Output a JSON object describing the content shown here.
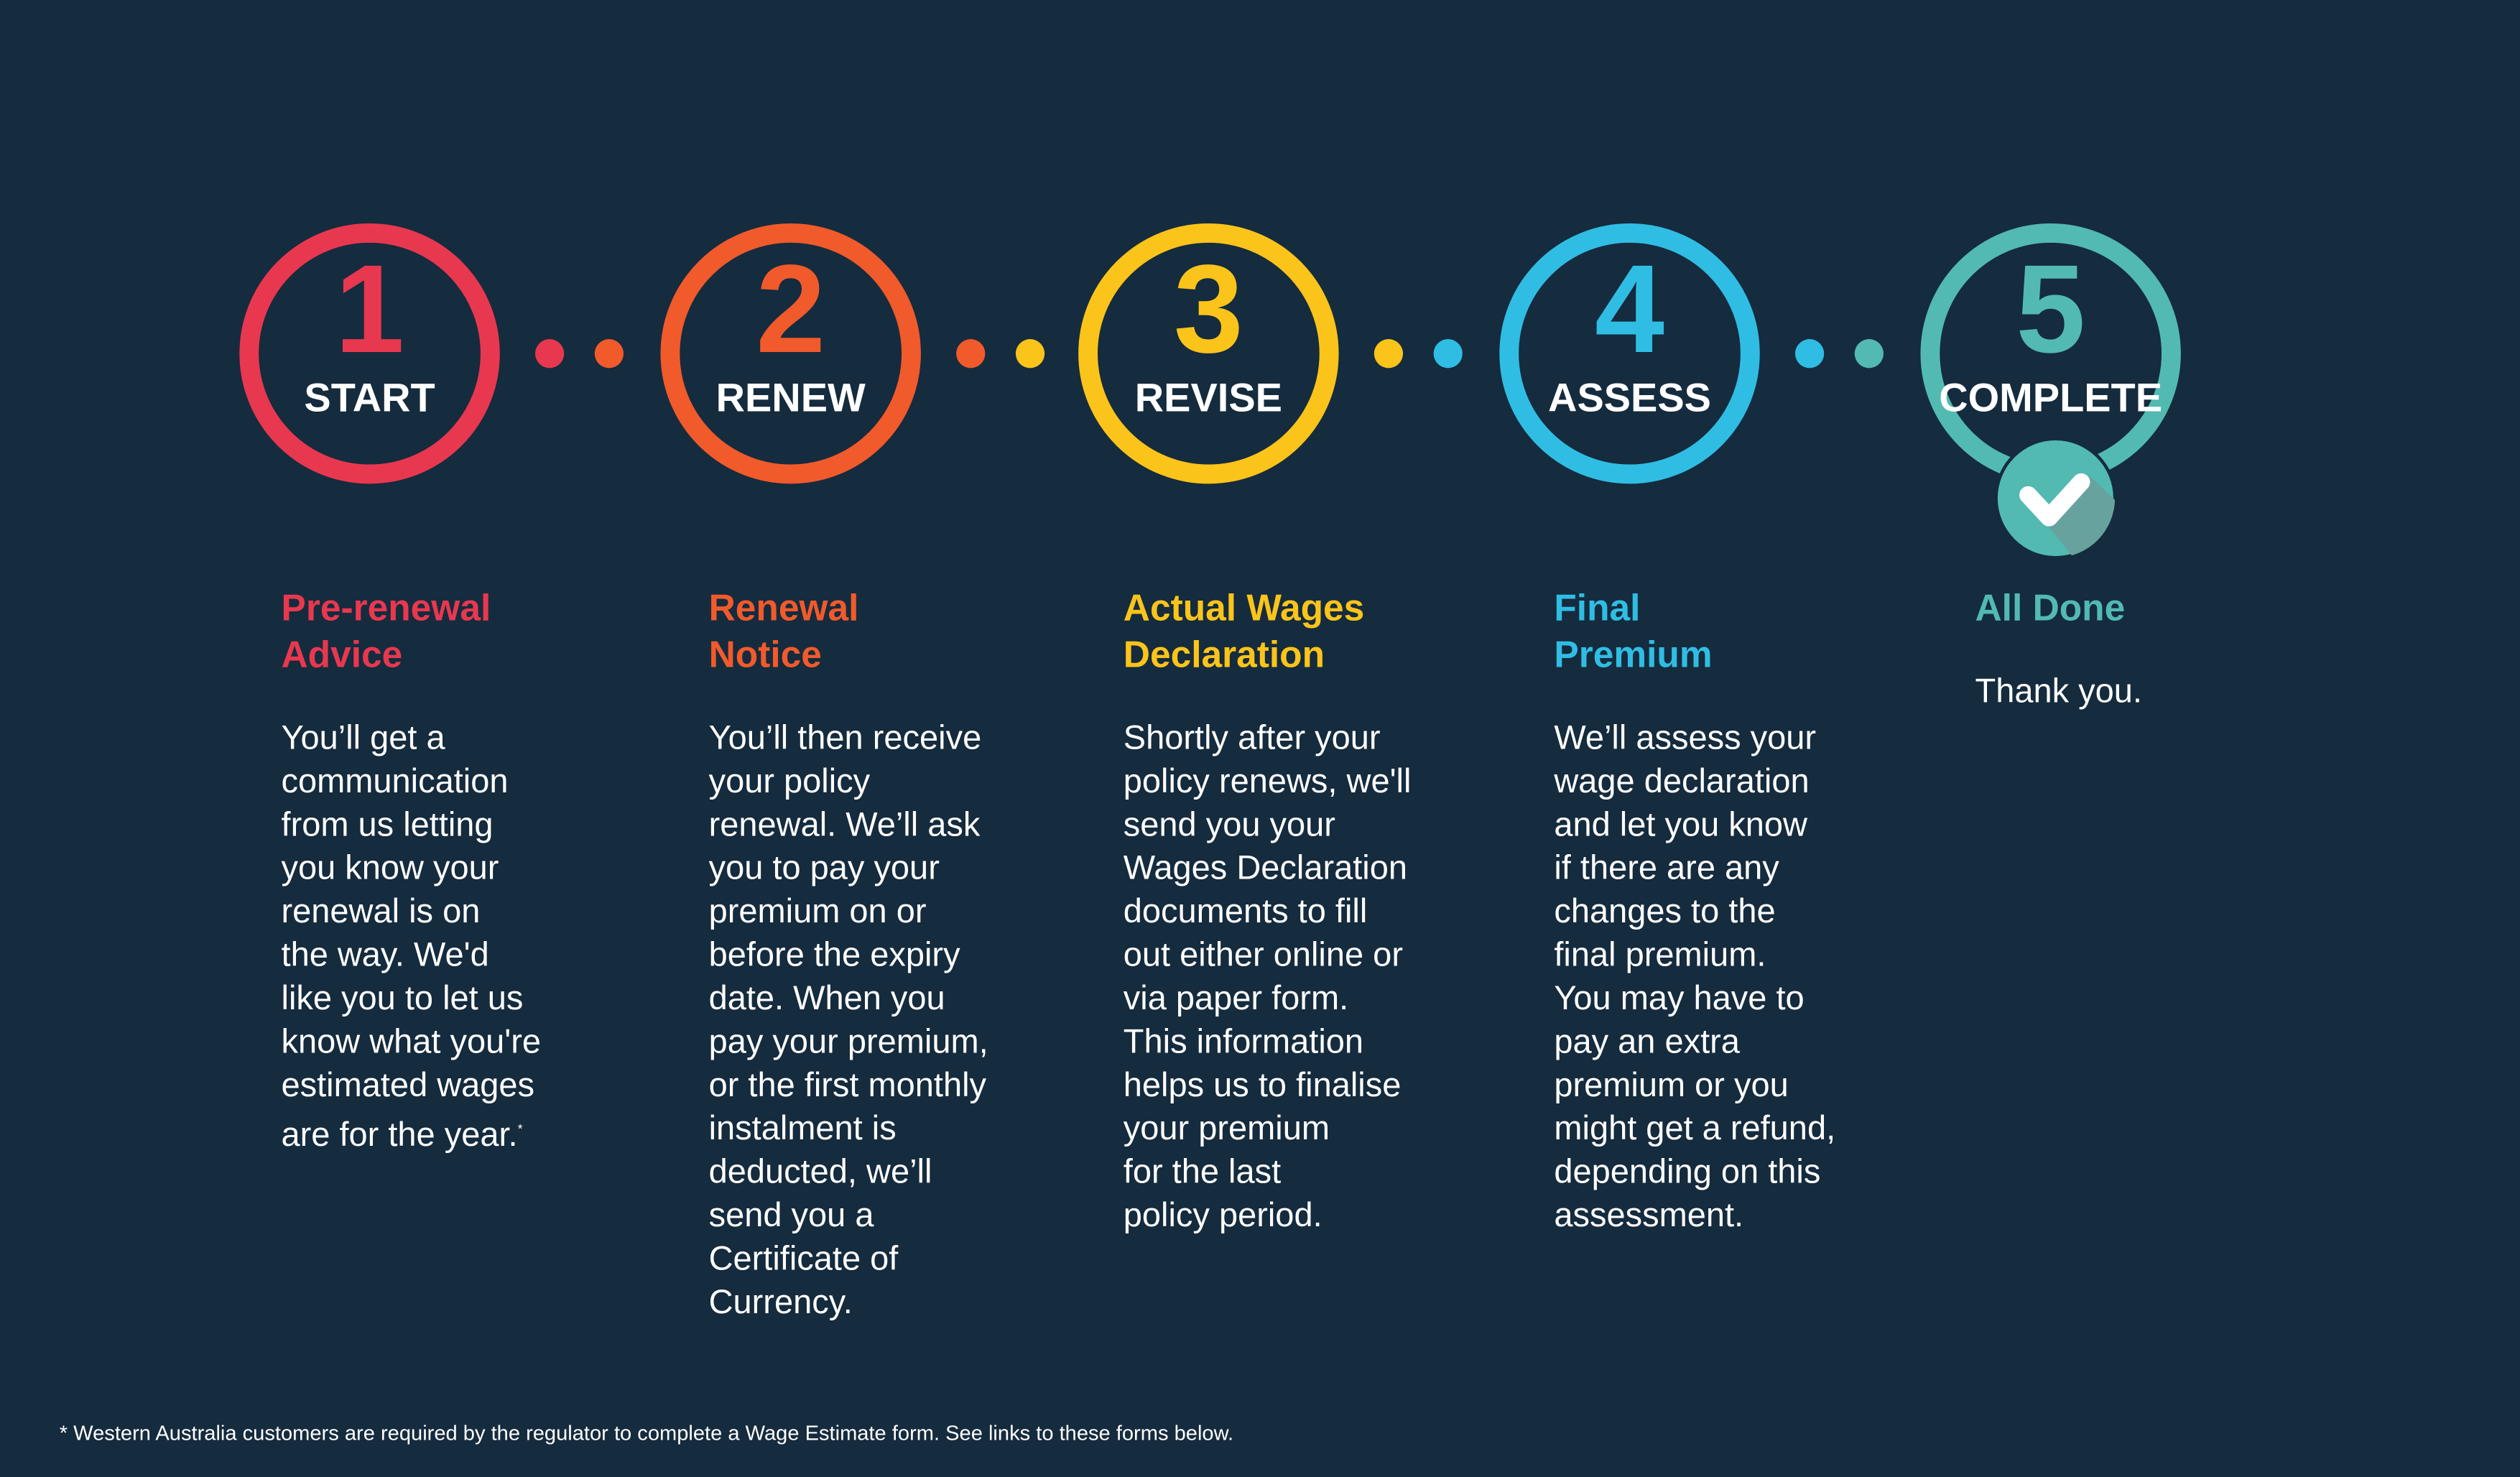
{
  "colors": {
    "background": "#152b3e",
    "step1": "#e8384f",
    "step2": "#f15a2b",
    "step3": "#fbc41a",
    "step4": "#30bde4",
    "step5": "#52bab1"
  },
  "steps": [
    {
      "number": "1",
      "label": "START",
      "heading": "Pre-renewal\nAdvice",
      "body": "You’ll get a\ncommunication\nfrom us letting\nyou know your\nrenewal is on\nthe way. We'd\nlike you to let us\nknow what you're\nestimated wages\nare for the year.",
      "footnote_marker": "*"
    },
    {
      "number": "2",
      "label": "RENEW",
      "heading": "Renewal\nNotice",
      "body": "You’ll then receive\nyour policy\nrenewal. We’ll ask\nyou to pay your\npremium on or\nbefore the expiry\ndate. When you\npay your premium,\nor the first monthly\ninstalment is\ndeducted, we’ll\nsend you a\nCertificate of\nCurrency."
    },
    {
      "number": "3",
      "label": "REVISE",
      "heading": "Actual Wages\nDeclaration",
      "body": "Shortly after your\npolicy renews, we'll\nsend you your\nWages Declaration\ndocuments to fill\nout either online or\nvia paper form.\nThis information\nhelps us to finalise\nyour premium\nfor the last\npolicy period."
    },
    {
      "number": "4",
      "label": "ASSESS",
      "heading": "Final\nPremium",
      "body": "We’ll assess your\nwage declaration\nand let you know\nif there are any\nchanges to the\nfinal premium.\nYou may have to\npay an extra\npremium or you\nmight get a refund,\ndepending on this\nassessment."
    },
    {
      "number": "5",
      "label": "COMPLETE",
      "heading": "All Done",
      "body": "Thank you.",
      "icon": "checkmark-icon"
    }
  ],
  "footnote": "* Western Australia customers are required by the regulator to complete a Wage Estimate form. See links to these forms below."
}
